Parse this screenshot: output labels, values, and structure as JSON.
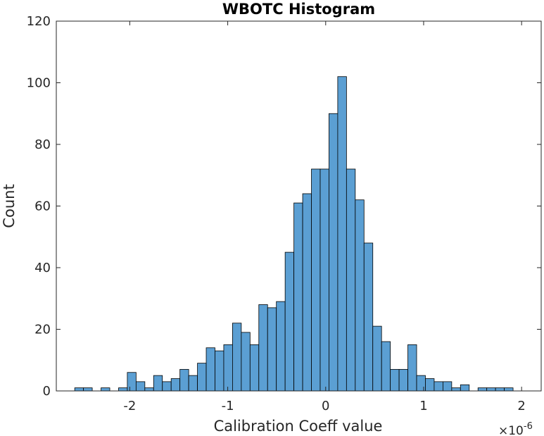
{
  "chart_data": {
    "type": "bar",
    "title": "WBOTC Histogram",
    "xlabel": "Calibration Coeff value",
    "ylabel": "Count",
    "x_exponent_label": "×10",
    "x_exponent_power": "-6",
    "xlim": [
      -2.75,
      2.2
    ],
    "ylim": [
      0,
      120
    ],
    "xticks": [
      -2,
      -1,
      0,
      1,
      2
    ],
    "xtick_labels": [
      "-2",
      "-1",
      "0",
      "1",
      "2"
    ],
    "yticks": [
      0,
      20,
      40,
      60,
      80,
      100,
      120
    ],
    "ytick_labels": [
      "0",
      "20",
      "40",
      "60",
      "80",
      "100",
      "120"
    ],
    "bin_start": -2.562,
    "bin_width": 0.0895,
    "values": [
      1,
      1,
      0,
      1,
      0,
      1,
      6,
      3,
      1,
      5,
      3,
      4,
      7,
      5,
      9,
      14,
      13,
      15,
      22,
      19,
      15,
      28,
      27,
      29,
      45,
      61,
      64,
      72,
      72,
      90,
      102,
      72,
      62,
      48,
      21,
      16,
      7,
      7,
      15,
      5,
      4,
      3,
      3,
      1,
      2,
      0,
      1,
      1,
      1,
      1
    ],
    "bar_color": "#5b9fd3",
    "edge_color": "#000000",
    "grid": false,
    "legend": "none"
  }
}
